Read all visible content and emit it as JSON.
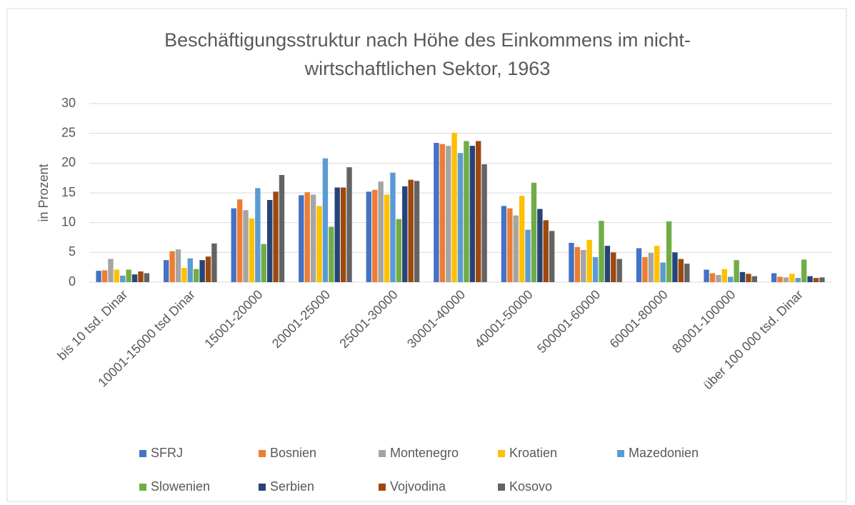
{
  "chart_data": {
    "type": "bar",
    "title": "Beschäftigungsstruktur nach Höhe des Einkommens im nicht-wirtschaftlichen Sektor, 1963",
    "y_label": "in Prozent",
    "categories": [
      "bis 10 tsd. Dinar",
      "10001-15000 tsd Dinar",
      "15001-20000",
      "20001-25000",
      "25001-30000",
      "30001-40000",
      "40001-50000",
      "500001-60000",
      "60001-80000",
      "80001-100000",
      "über 100 000 tsd. Dinar"
    ],
    "series": [
      {
        "name": "SFRJ",
        "color": "#4472c4",
        "values": [
          1.9,
          3.7,
          12.4,
          14.6,
          15.2,
          23.4,
          12.8,
          6.6,
          5.7,
          2.1,
          1.5
        ]
      },
      {
        "name": "Bosnien",
        "color": "#ed7d31",
        "values": [
          2.0,
          5.2,
          13.9,
          15.1,
          15.5,
          23.2,
          12.4,
          5.9,
          4.2,
          1.5,
          0.9
        ]
      },
      {
        "name": "Montenegro",
        "color": "#a5a5a5",
        "values": [
          3.9,
          5.5,
          12.1,
          14.7,
          16.9,
          22.9,
          11.2,
          5.4,
          4.9,
          1.2,
          0.8
        ]
      },
      {
        "name": "Kroatien",
        "color": "#ffc000",
        "values": [
          2.1,
          2.4,
          10.7,
          12.8,
          14.7,
          25.1,
          14.5,
          7.1,
          6.1,
          2.2,
          1.4
        ]
      },
      {
        "name": "Mazedonien",
        "color": "#5b9bd5",
        "values": [
          1.1,
          4.0,
          15.8,
          20.8,
          18.4,
          21.7,
          8.8,
          4.2,
          3.3,
          0.9,
          0.7
        ]
      },
      {
        "name": "Slowenien",
        "color": "#70ad47",
        "values": [
          2.1,
          2.2,
          6.4,
          9.3,
          10.6,
          23.7,
          16.7,
          10.3,
          10.2,
          3.7,
          3.8
        ]
      },
      {
        "name": "Serbien",
        "color": "#264478",
        "values": [
          1.3,
          3.7,
          13.8,
          15.9,
          16.1,
          22.9,
          12.3,
          6.1,
          5.0,
          1.7,
          1.0
        ]
      },
      {
        "name": "Vojvodina",
        "color": "#9e480e",
        "values": [
          1.8,
          4.3,
          15.2,
          15.9,
          17.2,
          23.7,
          10.4,
          5.0,
          3.9,
          1.4,
          0.7
        ]
      },
      {
        "name": "Kosovo",
        "color": "#636363",
        "values": [
          1.5,
          6.5,
          18.0,
          19.3,
          17.0,
          19.8,
          8.6,
          3.9,
          3.1,
          1.0,
          0.8
        ]
      }
    ],
    "ylim": [
      0,
      30
    ],
    "yticks": [
      0,
      5,
      10,
      15,
      20,
      25,
      30
    ],
    "grid": true,
    "legend": "bottom"
  }
}
